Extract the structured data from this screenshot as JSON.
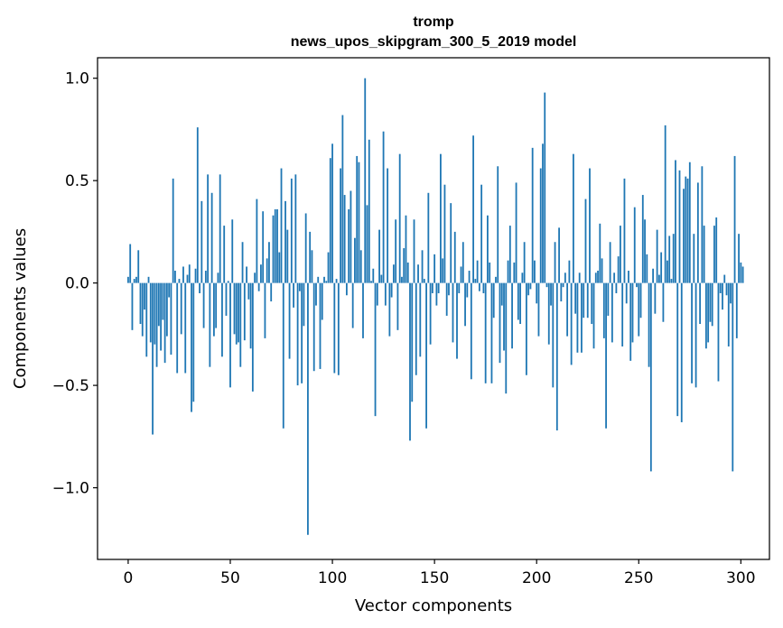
{
  "chart_data": {
    "type": "bar",
    "title": "tromp",
    "subtitle": "news_upos_skipgram_300_5_2019 model",
    "xlabel": "Vector components",
    "ylabel": "Components values",
    "xlim": [
      -15,
      314
    ],
    "ylim": [
      -1.35,
      1.1
    ],
    "xticks": [
      0,
      50,
      100,
      150,
      200,
      250,
      300
    ],
    "xtick_labels": [
      "0",
      "50",
      "100",
      "150",
      "200",
      "250",
      "300"
    ],
    "yticks": [
      -1.0,
      -0.5,
      0.0,
      0.5,
      1.0
    ],
    "ytick_labels": [
      "−1.0",
      "−0.5",
      "0.0",
      "0.5",
      "1.0"
    ],
    "bar_color": "#1f77b4",
    "values": [
      0.03,
      0.19,
      -0.23,
      0.02,
      0.03,
      0.16,
      -0.2,
      -0.26,
      -0.13,
      -0.36,
      0.03,
      -0.29,
      -0.74,
      -0.3,
      -0.41,
      -0.21,
      -0.33,
      -0.18,
      -0.39,
      -0.26,
      -0.07,
      -0.35,
      0.51,
      0.06,
      -0.44,
      0.02,
      -0.25,
      0.08,
      -0.44,
      0.04,
      0.09,
      -0.63,
      -0.58,
      0.07,
      0.76,
      -0.05,
      0.4,
      -0.22,
      0.06,
      0.53,
      -0.41,
      0.44,
      -0.26,
      -0.22,
      0.05,
      0.53,
      -0.36,
      0.28,
      -0.16,
      0.01,
      -0.51,
      0.31,
      -0.25,
      -0.3,
      -0.29,
      -0.41,
      0.2,
      -0.28,
      0.08,
      -0.08,
      -0.32,
      -0.53,
      0.05,
      0.41,
      -0.04,
      0.09,
      0.35,
      -0.27,
      0.12,
      0.2,
      -0.09,
      0.33,
      0.36,
      0.36,
      0.15,
      0.56,
      -0.71,
      0.4,
      0.26,
      -0.37,
      0.51,
      -0.12,
      0.53,
      -0.5,
      -0.04,
      -0.49,
      -0.21,
      0.34,
      -1.23,
      0.25,
      0.16,
      -0.43,
      -0.11,
      0.03,
      -0.42,
      -0.18,
      0.03,
      0.01,
      0.15,
      0.61,
      0.68,
      -0.44,
      0.02,
      -0.45,
      0.56,
      0.82,
      0.43,
      -0.06,
      0.36,
      0.45,
      -0.22,
      0.22,
      0.62,
      0.59,
      0.16,
      -0.27,
      1.0,
      0.38,
      0.7,
      0.01,
      0.07,
      -0.65,
      -0.11,
      0.26,
      0.04,
      0.74,
      -0.11,
      0.56,
      -0.26,
      -0.07,
      0.09,
      0.31,
      -0.23,
      0.63,
      0.03,
      0.17,
      0.33,
      0.1,
      -0.77,
      -0.58,
      0.31,
      -0.45,
      0.09,
      -0.36,
      0.16,
      0.02,
      -0.71,
      0.44,
      -0.3,
      -0.05,
      0.14,
      -0.11,
      -0.05,
      0.63,
      0.12,
      0.48,
      -0.16,
      -0.06,
      0.39,
      -0.29,
      0.25,
      -0.37,
      -0.05,
      0.08,
      0.2,
      -0.21,
      -0.07,
      0.06,
      -0.47,
      0.72,
      0.02,
      0.11,
      -0.04,
      0.48,
      -0.05,
      -0.49,
      0.33,
      0.1,
      -0.49,
      -0.17,
      0.03,
      0.57,
      -0.39,
      -0.11,
      -0.33,
      -0.54,
      0.11,
      0.28,
      -0.32,
      0.1,
      0.49,
      -0.18,
      -0.2,
      0.05,
      0.2,
      -0.45,
      -0.06,
      -0.03,
      0.66,
      0.11,
      -0.1,
      -0.26,
      0.56,
      0.68,
      0.93,
      -0.02,
      -0.3,
      -0.11,
      -0.51,
      0.2,
      -0.72,
      0.27,
      -0.09,
      -0.02,
      0.05,
      -0.26,
      0.11,
      -0.4,
      0.63,
      -0.15,
      -0.34,
      0.05,
      -0.34,
      -0.17,
      0.41,
      -0.17,
      0.56,
      -0.2,
      -0.32,
      0.05,
      0.06,
      0.29,
      0.12,
      -0.27,
      -0.71,
      -0.16,
      0.2,
      -0.29,
      0.05,
      -0.05,
      0.13,
      0.28,
      -0.31,
      0.51,
      -0.1,
      0.06,
      -0.38,
      -0.29,
      0.37,
      -0.02,
      -0.26,
      -0.17,
      0.43,
      0.31,
      0.14,
      -0.41,
      -0.92,
      0.07,
      -0.15,
      0.26,
      0.04,
      0.15,
      -0.19,
      0.77,
      0.11,
      0.23,
      0.02,
      0.24,
      0.6,
      -0.65,
      0.55,
      -0.68,
      0.46,
      0.52,
      0.51,
      0.59,
      -0.49,
      0.24,
      -0.51,
      0.49,
      -0.2,
      0.57,
      0.28,
      -0.32,
      -0.29,
      -0.19,
      -0.21,
      0.28,
      0.32,
      -0.48,
      -0.05,
      -0.13,
      0.04,
      -0.06,
      -0.31,
      -0.1,
      -0.92,
      0.62,
      -0.27,
      0.24,
      0.1,
      0.08
    ]
  }
}
